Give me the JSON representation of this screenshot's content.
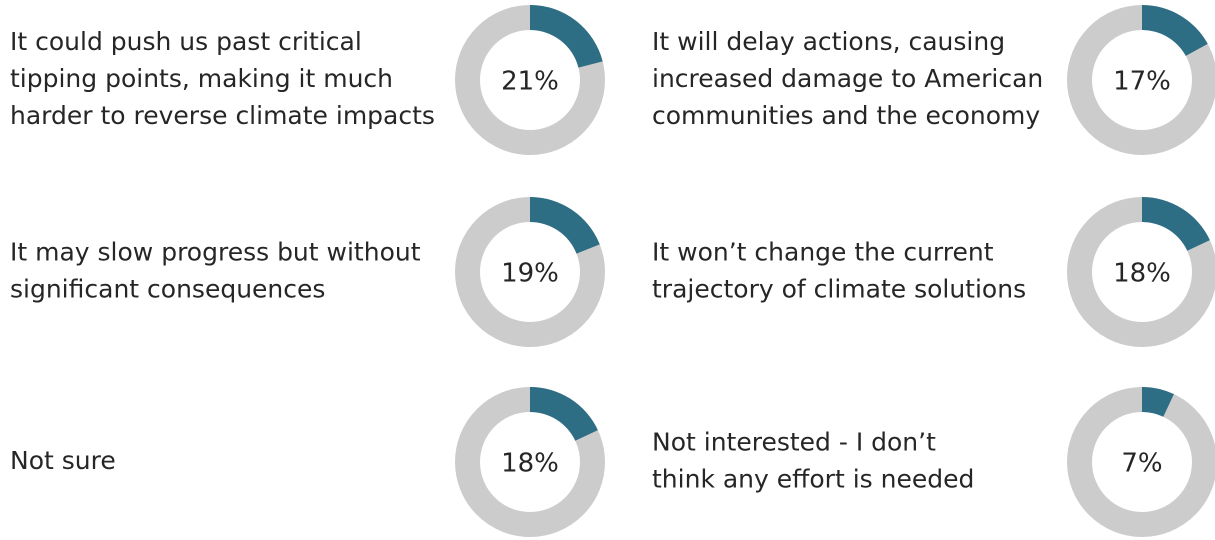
{
  "chart_data": [
    {
      "type": "donut",
      "title": [
        "It could push us past critical",
        "tipping points, making it much",
        "harder to reverse climate impacts"
      ],
      "values": [
        21
      ],
      "value_labels": [
        "21%"
      ],
      "color": "#2e6e85",
      "track_color": "#cccccc"
    },
    {
      "type": "donut",
      "title": [
        "It will delay actions, causing",
        "increased damage to American",
        "communities and the economy"
      ],
      "values": [
        17
      ],
      "value_labels": [
        "17%"
      ],
      "color": "#2e6e85",
      "track_color": "#cccccc"
    },
    {
      "type": "donut",
      "title": [
        "It may slow progress but without",
        "significant consequences"
      ],
      "values": [
        19
      ],
      "value_labels": [
        "19%"
      ],
      "color": "#2e6e85",
      "track_color": "#cccccc"
    },
    {
      "type": "donut",
      "title": [
        "It won’t change the current",
        "trajectory of climate solutions"
      ],
      "values": [
        18
      ],
      "value_labels": [
        "18%"
      ],
      "color": "#2e6e85",
      "track_color": "#cccccc"
    },
    {
      "type": "donut",
      "title": [
        "Not sure"
      ],
      "values": [
        18
      ],
      "value_labels": [
        "18%"
      ],
      "color": "#2e6e85",
      "track_color": "#cccccc"
    },
    {
      "type": "donut",
      "title": [
        "Not interested - I don’t",
        "think any effort is needed"
      ],
      "values": [
        7
      ],
      "value_labels": [
        "7%"
      ],
      "color": "#2e6e85",
      "track_color": "#cccccc"
    }
  ]
}
